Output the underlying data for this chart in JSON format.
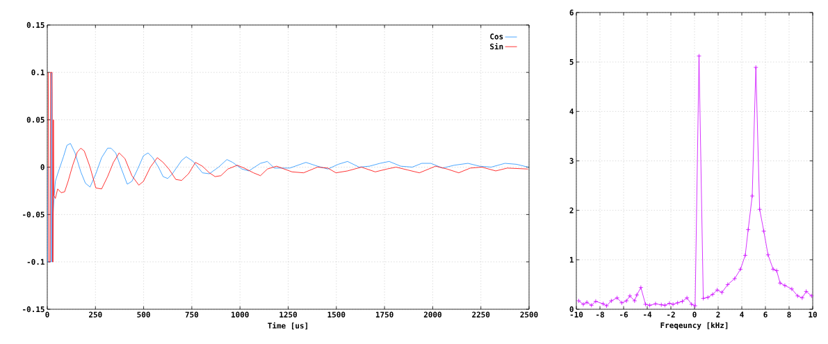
{
  "chart_data": [
    {
      "type": "line",
      "xlabel": "Time [us]",
      "xlim": [
        0,
        2500
      ],
      "ylim": [
        -0.15,
        0.15
      ],
      "xticks": [
        0,
        250,
        500,
        750,
        1000,
        1250,
        1500,
        1750,
        2000,
        2250,
        2500
      ],
      "yticks": [
        -0.15,
        -0.1,
        -0.05,
        0,
        0.05,
        0.1,
        0.15
      ],
      "grid": true,
      "legend": "top right",
      "marker": "none",
      "line_style": "solid",
      "series": [
        {
          "name": "Cos",
          "color": "#1e90ff",
          "x": [
            0,
            1,
            20,
            22,
            24,
            25,
            28,
            30,
            36,
            42,
            54,
            84,
            102,
            120,
            144,
            174,
            198,
            222,
            252,
            282,
            313,
            331,
            355,
            385,
            415,
            439,
            469,
            499,
            523,
            547,
            577,
            601,
            625,
            649,
            697,
            721,
            757,
            805,
            841,
            889,
            932,
            962,
            1010,
            1046,
            1106,
            1142,
            1178,
            1226,
            1258,
            1342,
            1402,
            1456,
            1510,
            1558,
            1618,
            1672,
            1726,
            1774,
            1834,
            1894,
            1943,
            1991,
            2051,
            2111,
            2183,
            2243,
            2303,
            2375,
            2435,
            2495
          ],
          "values": [
            0,
            -0.1,
            -0.1,
            0.1,
            0.08,
            -0.1,
            -0.1,
            -0.05,
            -0.03,
            -0.015,
            -0.007,
            0.011,
            0.023,
            0.025,
            0.015,
            -0.005,
            -0.017,
            -0.021,
            -0.007,
            0.01,
            0.02,
            0.02,
            0.015,
            -0.002,
            -0.018,
            -0.015,
            -0.002,
            0.012,
            0.015,
            0.01,
            0.0,
            -0.01,
            -0.012,
            -0.007,
            0.007,
            0.011,
            0.006,
            -0.006,
            -0.007,
            0.0,
            0.008,
            0.005,
            -0.002,
            -0.004,
            0.004,
            0.006,
            -0.001,
            -0.001,
            -0.001,
            0.005,
            0.001,
            -0.002,
            0.003,
            0.006,
            0.0,
            0.001,
            0.004,
            0.006,
            0.001,
            0.0,
            0.004,
            0.004,
            -0.001,
            0.002,
            0.004,
            0.001,
            0.0,
            0.004,
            0.003,
            0.0
          ]
        },
        {
          "name": "Sin",
          "color": "#ff0000",
          "x": [
            5,
            8,
            15,
            17,
            25,
            27,
            30,
            32,
            34,
            42,
            54,
            72,
            90,
            108,
            132,
            156,
            174,
            192,
            222,
            252,
            282,
            313,
            343,
            373,
            403,
            439,
            475,
            499,
            535,
            571,
            601,
            631,
            667,
            697,
            733,
            769,
            805,
            841,
            871,
            901,
            937,
            986,
            1022,
            1070,
            1106,
            1142,
            1190,
            1270,
            1330,
            1402,
            1456,
            1498,
            1558,
            1630,
            1702,
            1762,
            1810,
            1870,
            1931,
            2015,
            2075,
            2135,
            2195,
            2255,
            2327,
            2387,
            2495
          ],
          "values": [
            0.1,
            -0.1,
            -0.1,
            0.1,
            0.1,
            -0.1,
            -0.1,
            0.05,
            -0.03,
            -0.033,
            -0.023,
            -0.027,
            -0.026,
            -0.015,
            0.002,
            0.016,
            0.02,
            0.017,
            0.0,
            -0.022,
            -0.023,
            -0.01,
            0.005,
            0.015,
            0.009,
            -0.009,
            -0.019,
            -0.015,
            0.0,
            0.01,
            0.005,
            -0.002,
            -0.013,
            -0.014,
            -0.007,
            0.005,
            0.001,
            -0.006,
            -0.01,
            -0.009,
            -0.002,
            0.002,
            -0.001,
            -0.006,
            -0.009,
            -0.002,
            0.001,
            -0.005,
            -0.006,
            0.0,
            -0.001,
            -0.006,
            -0.004,
            0.0,
            -0.005,
            -0.002,
            0.0,
            -0.003,
            -0.006,
            0.001,
            -0.002,
            -0.006,
            -0.001,
            0.0,
            -0.004,
            -0.001,
            -0.002
          ]
        }
      ]
    },
    {
      "type": "line",
      "xlabel": "Freqeuncy [kHz]",
      "xlim": [
        -10,
        10
      ],
      "ylim": [
        0,
        6
      ],
      "xticks": [
        -10,
        -8,
        -6,
        -4,
        -2,
        0,
        2,
        4,
        6,
        8,
        10
      ],
      "yticks": [
        0,
        1,
        2,
        3,
        4,
        5,
        6
      ],
      "grid": true,
      "marker": "cross",
      "line_style": "solid",
      "series": [
        {
          "color": "#cc00ff",
          "x": [
            -9.8,
            -9.41,
            -9.11,
            -8.72,
            -8.36,
            -7.73,
            -7.44,
            -7.04,
            -6.55,
            -6.16,
            -5.76,
            -5.47,
            -5.07,
            -4.88,
            -4.54,
            -4.15,
            -3.79,
            -3.3,
            -2.81,
            -2.51,
            -2.12,
            -1.82,
            -1.43,
            -1.03,
            -0.64,
            -0.25,
            0.05,
            0.38,
            0.74,
            1.13,
            1.53,
            1.92,
            2.32,
            2.81,
            3.4,
            3.89,
            4.29,
            4.54,
            4.88,
            5.19,
            5.51,
            5.86,
            6.22,
            6.65,
            6.95,
            7.24,
            7.64,
            8.23,
            8.72,
            9.11,
            9.45,
            9.9
          ],
          "values": [
            0.17,
            0.1,
            0.14,
            0.08,
            0.16,
            0.11,
            0.07,
            0.17,
            0.23,
            0.13,
            0.17,
            0.27,
            0.17,
            0.29,
            0.44,
            0.1,
            0.08,
            0.11,
            0.09,
            0.08,
            0.12,
            0.1,
            0.13,
            0.16,
            0.23,
            0.1,
            0.07,
            5.12,
            0.22,
            0.24,
            0.3,
            0.39,
            0.34,
            0.5,
            0.62,
            0.81,
            1.09,
            1.61,
            2.29,
            4.89,
            2.02,
            1.58,
            1.1,
            0.81,
            0.78,
            0.53,
            0.48,
            0.41,
            0.27,
            0.23,
            0.36,
            0.27
          ]
        }
      ]
    }
  ]
}
